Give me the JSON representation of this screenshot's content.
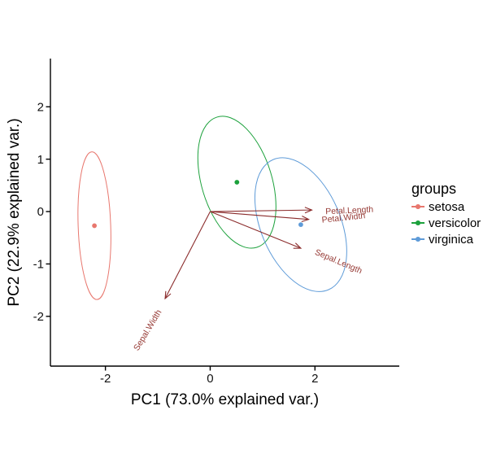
{
  "figure": {
    "x_axis_title": "PC1 (73.0% explained var.)",
    "y_axis_title": "PC2 (22.9% explained var.)"
  },
  "legend": {
    "title": "groups",
    "items": [
      {
        "label": "setosa",
        "color": "#E8776E"
      },
      {
        "label": "versicolor",
        "color": "#1CA13C"
      },
      {
        "label": "virginica",
        "color": "#5E9BD8"
      }
    ]
  },
  "chart_data": {
    "type": "scatter",
    "subtype": "pca-biplot",
    "title": "",
    "xlabel": "PC1 (73.0% explained var.)",
    "ylabel": "PC2 (22.9% explained var.)",
    "pc1_explained_var_pct": 73.0,
    "pc2_explained_var_pct": 22.9,
    "xlim": [
      -3.05,
      3.61
    ],
    "ylim": [
      -2.95,
      2.92
    ],
    "x_ticks": [
      -2,
      0,
      2
    ],
    "y_ticks": [
      -2,
      -1,
      0,
      1,
      2
    ],
    "grid": false,
    "legend_position": "right",
    "groups": [
      {
        "name": "setosa",
        "color": "#E8776E",
        "center": [
          -2.21,
          -0.27
        ],
        "ellipse": {
          "semi_major": 1.41,
          "semi_minor": 0.31,
          "rotation_deg": -2
        }
      },
      {
        "name": "versicolor",
        "color": "#1CA13C",
        "center": [
          0.51,
          0.56
        ],
        "ellipse": {
          "semi_major": 1.3,
          "semi_minor": 0.67,
          "rotation_deg": -17
        }
      },
      {
        "name": "virginica",
        "color": "#5E9BD8",
        "center": [
          1.73,
          -0.25
        ],
        "ellipse": {
          "semi_major": 1.35,
          "semi_minor": 0.76,
          "rotation_deg": -23
        }
      }
    ],
    "loadings": [
      {
        "name": "Petal.Length",
        "vector": [
          1.94,
          0.03
        ],
        "label_pos": [
          2.66,
          -0.03
        ],
        "label_rotation_deg": -2.5
      },
      {
        "name": "Petal.Width",
        "vector": [
          1.88,
          -0.15
        ],
        "label_pos": [
          2.55,
          -0.17
        ],
        "label_rotation_deg": -6
      },
      {
        "name": "Sepal.Length",
        "vector": [
          1.73,
          -0.7
        ],
        "label_pos": [
          2.43,
          -1.0
        ],
        "label_rotation_deg": 23
      },
      {
        "name": "Sepal.Width",
        "vector": [
          -0.86,
          -1.66
        ],
        "label_pos": [
          -1.15,
          -2.29
        ],
        "label_rotation_deg": -59
      }
    ],
    "arrow_color": "#8B2C2C",
    "loading_label_color": "#963A35",
    "axis_line_color": "#000000",
    "tick_label_color": "#111111"
  }
}
